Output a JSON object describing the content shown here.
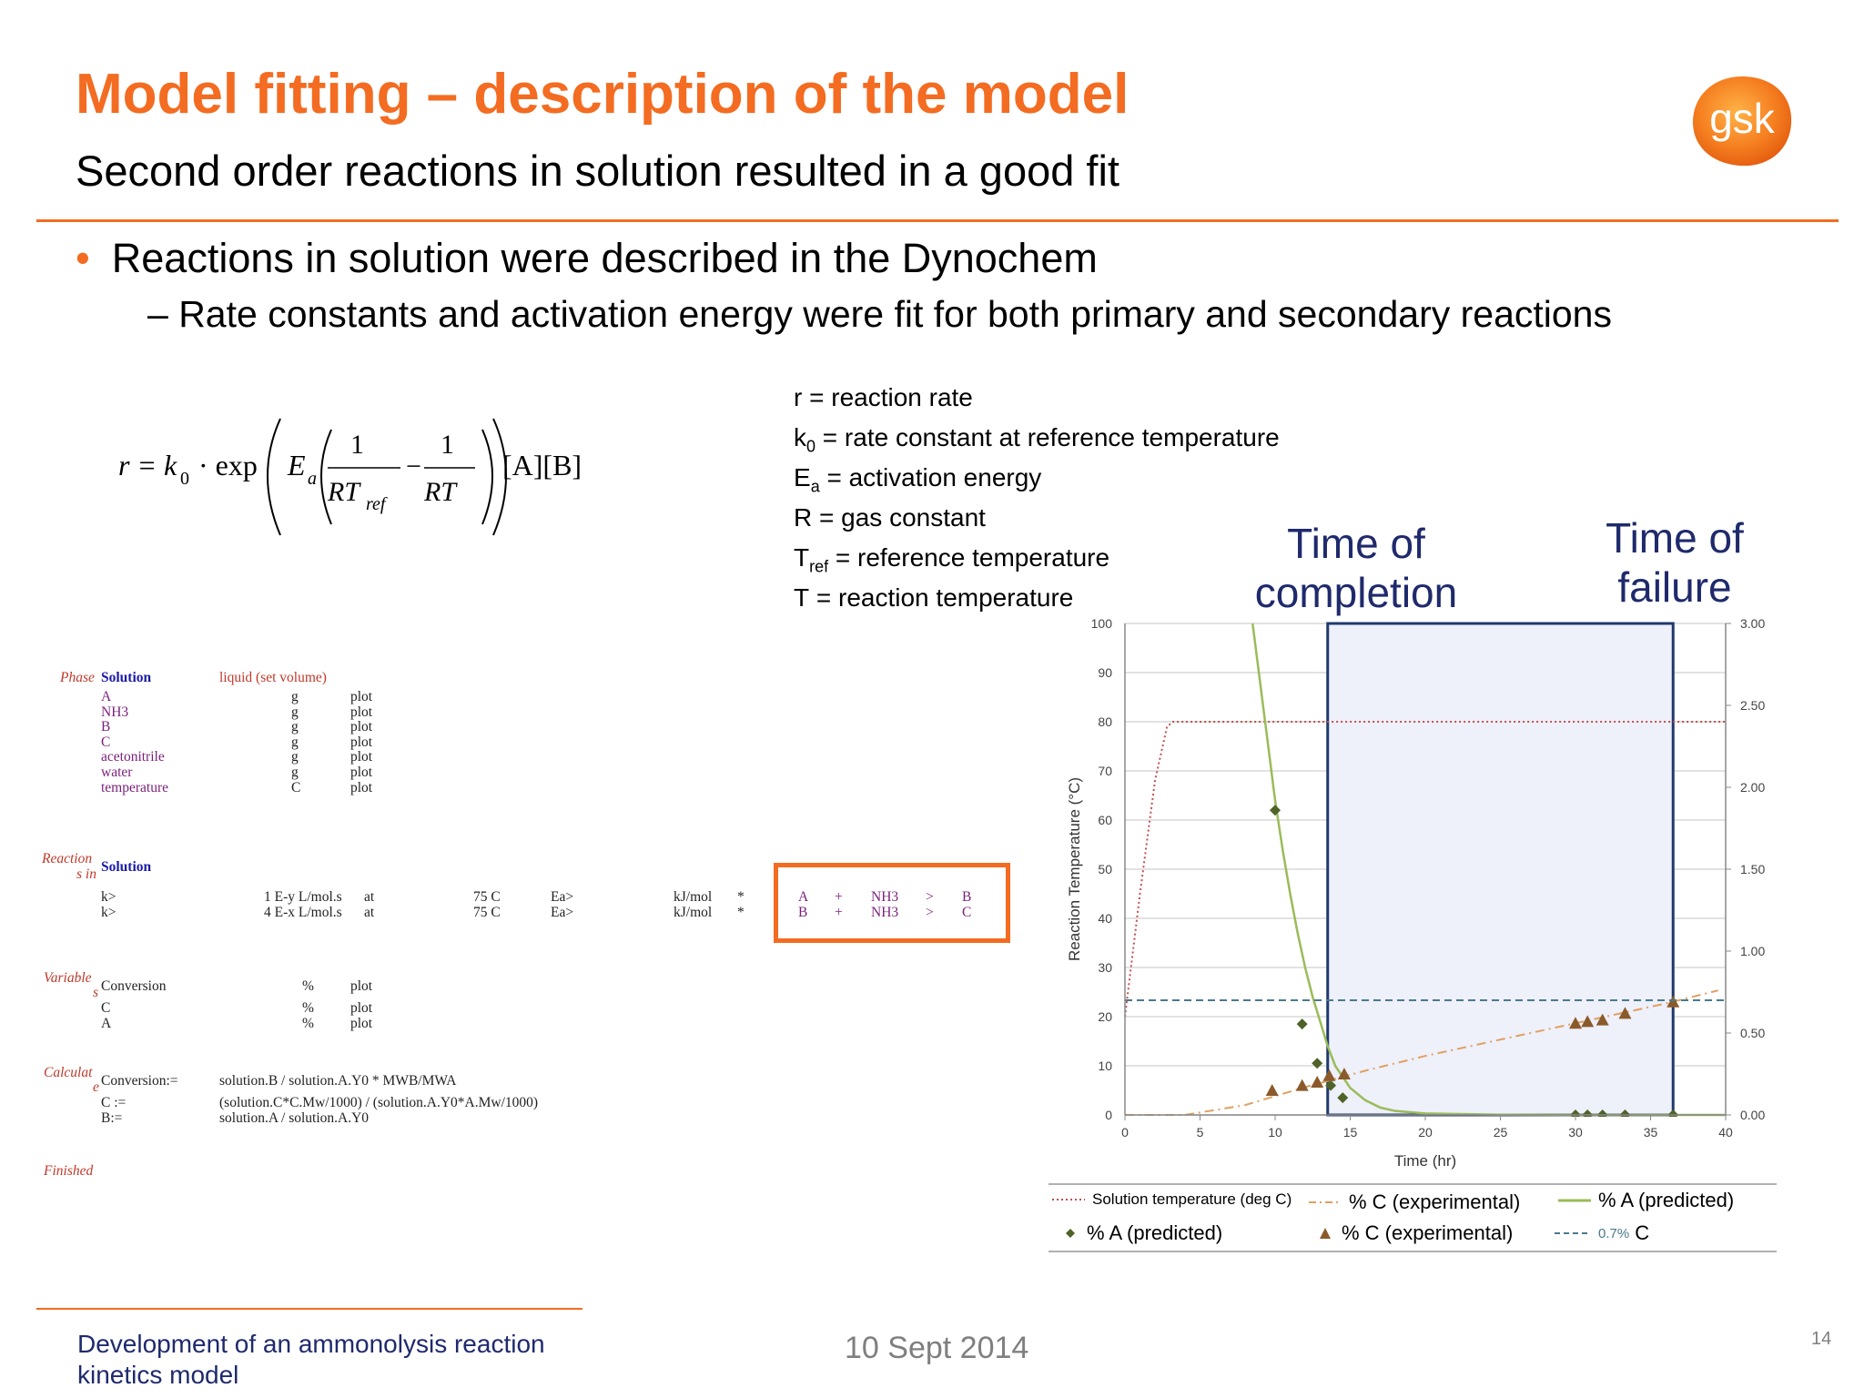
{
  "header": {
    "title": "Model fitting – description of the model",
    "subtitle": "Second order reactions in solution resulted in a good fit",
    "logo_text": "gsk"
  },
  "bullets": {
    "level1": "Reactions in solution were described in the Dynochem",
    "level2": "– Rate constants and activation energy were fit for both primary and secondary reactions"
  },
  "formula": {
    "lhs": "r = k",
    "sub0": "0",
    "exp": "· exp",
    "E": "E",
    "sub_a": "a",
    "one": "1",
    "RTref": "RT",
    "sub_ref": "ref",
    "minus": "−",
    "RT": "RT",
    "conc": "[A][B]"
  },
  "definitions": [
    {
      "sym": "r",
      "sub": "",
      "text": " = reaction rate"
    },
    {
      "sym": "k",
      "sub": "0",
      "text": " = rate constant at reference temperature"
    },
    {
      "sym": "E",
      "sub": "a",
      "text": " = activation energy"
    },
    {
      "sym": "R",
      "sub": "",
      "text": " = gas constant"
    },
    {
      "sym": "T",
      "sub": "ref",
      "text": " = reference temperature"
    },
    {
      "sym": "T",
      "sub": "",
      "text": " = reaction temperature"
    }
  ],
  "labels": {
    "completion_1": "Time of",
    "completion_2": "completion",
    "failure_1": "Time of",
    "failure_2": "failure"
  },
  "model": {
    "phase_label": "Phase",
    "phase_name": "Solution",
    "phase_desc": "liquid (set volume)",
    "species": [
      {
        "name": "A",
        "unit": "g",
        "flag": "plot"
      },
      {
        "name": "NH3",
        "unit": "g",
        "flag": "plot"
      },
      {
        "name": "B",
        "unit": "g",
        "flag": "plot"
      },
      {
        "name": "C",
        "unit": "g",
        "flag": "plot"
      },
      {
        "name": "acetonitrile",
        "unit": "g",
        "flag": "plot"
      },
      {
        "name": "water",
        "unit": "g",
        "flag": "plot"
      },
      {
        "name": "temperature",
        "unit": "C",
        "flag": "plot"
      }
    ],
    "reactions_label_1": "Reaction",
    "reactions_label_2": "s in",
    "reactions_phase": "Solution",
    "reactions": [
      {
        "k": "k>",
        "val": "1 E-y L/mol.s",
        "at": "at",
        "temp": "75 C",
        "ea": "Ea>",
        "eunit": "kJ/mol",
        "star": "*",
        "r1": "A",
        "plus": "+",
        "r2": "NH3",
        "arrow": ">",
        "prod": "B"
      },
      {
        "k": "k>",
        "val": "4 E-x L/mol.s",
        "at": "at",
        "temp": "75 C",
        "ea": "Ea>",
        "eunit": "kJ/mol",
        "star": "*",
        "r1": "B",
        "plus": "+",
        "r2": "NH3",
        "arrow": ">",
        "prod": "C"
      }
    ],
    "variables_label_1": "Variable",
    "variables_label_2": "s",
    "variables": [
      {
        "name": "Conversion",
        "unit": "%",
        "flag": "plot"
      },
      {
        "name": "C",
        "unit": "%",
        "flag": "plot"
      },
      {
        "name": "A",
        "unit": "%",
        "flag": "plot"
      }
    ],
    "calc_label_1": "Calculat",
    "calc_label_2": "e",
    "calcs": [
      {
        "name": "Conversion:=",
        "expr": "solution.B / solution.A.Y0 * MWB/MWA"
      },
      {
        "name": "C :=",
        "expr": "(solution.C*C.Mw/1000) / (solution.A.Y0*A.Mw/1000)"
      },
      {
        "name": "B:=",
        "expr": "solution.A / solution.A.Y0"
      }
    ],
    "finished": "Finished"
  },
  "chart_data": {
    "type": "line",
    "xlabel": "Time (hr)",
    "ylabel": "Reaction Temperature (°C)",
    "xlim": [
      0,
      40
    ],
    "ylim": [
      0,
      100
    ],
    "y2lim": [
      0,
      3
    ],
    "xticks": [
      0,
      5,
      10,
      15,
      20,
      25,
      30,
      35,
      40
    ],
    "yticks": [
      0,
      10,
      20,
      30,
      40,
      50,
      60,
      70,
      80,
      90,
      100
    ],
    "y2ticks": [
      "0.00",
      "0.50",
      "1.00",
      "1.50",
      "2.00",
      "2.50",
      "3.00"
    ],
    "grid": true,
    "highlight_region": [
      13.5,
      36.5
    ],
    "series": [
      {
        "name": "Solution temperature (deg C)",
        "axis": "left",
        "style": "dotted",
        "color": "#c0504d",
        "x": [
          0,
          1,
          2,
          2.8,
          3.2,
          40
        ],
        "y": [
          20,
          45,
          68,
          79,
          80,
          80
        ]
      },
      {
        "name": "% A (predicted)",
        "axis": "left",
        "style": "solid",
        "color": "#9bbb59",
        "x": [
          8.5,
          9,
          9.5,
          10,
          10.5,
          11,
          11.5,
          12,
          12.5,
          13,
          13.5,
          14,
          15,
          16,
          17,
          18,
          20,
          25,
          30,
          40
        ],
        "y": [
          100,
          88,
          76,
          64,
          54,
          45,
          37,
          30,
          24,
          19,
          14,
          10,
          5.5,
          3,
          1.5,
          0.8,
          0.3,
          0.05,
          0.01,
          0
        ]
      },
      {
        "name": "% A (predicted)",
        "axis": "left",
        "style": "marker-diamond",
        "color": "#4f6228",
        "x": [
          10,
          11.8,
          12.8,
          13.7,
          14.5,
          30,
          30.8,
          31.8,
          33.3,
          36.5
        ],
        "y": [
          62,
          18.5,
          10.5,
          6,
          3.5,
          0,
          0,
          0,
          0,
          0
        ]
      },
      {
        "name": "% C (experimental)",
        "axis": "right",
        "style": "dashdot",
        "color": "#e0a060",
        "x": [
          0,
          4,
          8,
          12,
          16,
          20,
          24,
          28,
          32,
          36,
          39.5
        ],
        "y": [
          0,
          0,
          0.06,
          0.17,
          0.27,
          0.36,
          0.44,
          0.52,
          0.6,
          0.68,
          0.76
        ]
      },
      {
        "name": "% C (experimental)",
        "axis": "right",
        "style": "marker-triangle",
        "color": "#8b5a2b",
        "x": [
          9.8,
          11.8,
          12.8,
          13.6,
          14.6,
          30,
          30.8,
          31.8,
          33.3,
          36.5
        ],
        "y": [
          0.15,
          0.18,
          0.2,
          0.24,
          0.25,
          0.56,
          0.57,
          0.58,
          0.62,
          0.69
        ]
      },
      {
        "name": "C",
        "axis": "right",
        "style": "dashed",
        "color": "#4a7a8c",
        "x": [
          0,
          40
        ],
        "y": [
          0.7,
          0.7
        ]
      }
    ],
    "legend": {
      "items": [
        "Solution temperature (deg C)",
        "% C (experimental)",
        "% A (predicted)",
        "% A (predicted)",
        "% C (experimental)",
        "C"
      ],
      "limit_label": "0.7%"
    }
  },
  "footer": {
    "text": "Development of an ammonolysis reaction kinetics model",
    "date": "10 Sept 2014",
    "page": "14"
  }
}
